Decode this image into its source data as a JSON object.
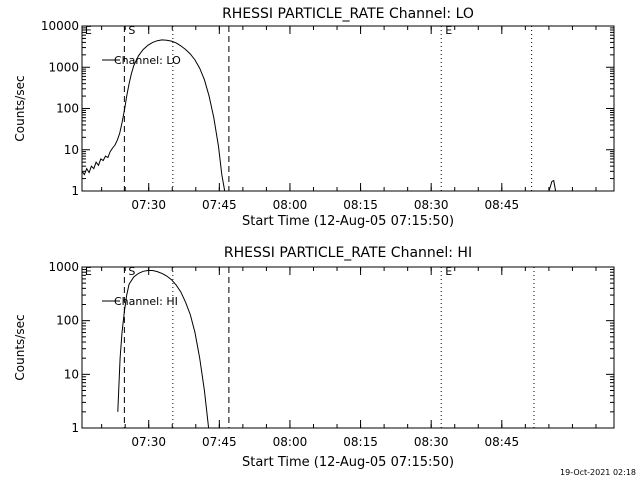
{
  "footer": {
    "timestamp": "19-Oct-2021 02:18"
  },
  "chart_data": [
    {
      "type": "line",
      "title": "RHESSI PARTICLE_RATE Channel: LO",
      "xlabel": "Start Time (12-Aug-05 07:15:50)",
      "ylabel": "Counts/sec",
      "yscale": "log",
      "xlim_minutes": [
        0,
        113
      ],
      "ylim": [
        1,
        10000
      ],
      "grid": false,
      "legend_position": "top-left",
      "x_ticks": [
        {
          "minute": 14.17,
          "label": "07:30"
        },
        {
          "minute": 29.17,
          "label": "07:45"
        },
        {
          "minute": 44.17,
          "label": "08:00"
        },
        {
          "minute": 59.17,
          "label": "08:15"
        },
        {
          "minute": 74.17,
          "label": "08:30"
        },
        {
          "minute": 89.17,
          "label": "08:45"
        }
      ],
      "y_ticks": [
        {
          "value": 1,
          "label": "1"
        },
        {
          "value": 10,
          "label": "10"
        },
        {
          "value": 100,
          "label": "100"
        },
        {
          "value": 1000,
          "label": "1000"
        },
        {
          "value": 10000,
          "label": "10000"
        }
      ],
      "markers": [
        {
          "label": "E",
          "minute": 0.6,
          "style": "none"
        },
        {
          "label": "S",
          "minute": 9.0,
          "style": "dashed"
        },
        {
          "label": "",
          "minute": 19.3,
          "style": "dotted"
        },
        {
          "label": "",
          "minute": 31.2,
          "style": "dashed"
        },
        {
          "label": "E",
          "minute": 76.3,
          "style": "dotted"
        },
        {
          "label": "",
          "minute": 95.5,
          "style": "dotted"
        }
      ],
      "series": [
        {
          "name": "Channel: LO",
          "segments": [
            [
              [
                0,
                3
              ],
              [
                0.5,
                2.5
              ],
              [
                1,
                3.5
              ],
              [
                1.5,
                2.8
              ],
              [
                2,
                4
              ],
              [
                2.5,
                3.5
              ],
              [
                3,
                5
              ],
              [
                3.5,
                4.2
              ],
              [
                4,
                6
              ],
              [
                4.5,
                5.5
              ],
              [
                5,
                7
              ],
              [
                5.5,
                6.5
              ],
              [
                6,
                9
              ],
              [
                6.5,
                11
              ],
              [
                7,
                13
              ],
              [
                7.5,
                17
              ],
              [
                8,
                25
              ],
              [
                8.5,
                45
              ],
              [
                9,
                90
              ],
              [
                9.5,
                200
              ],
              [
                10,
                400
              ],
              [
                10.5,
                700
              ],
              [
                11,
                1100
              ],
              [
                12,
                1900
              ],
              [
                13,
                2700
              ],
              [
                14,
                3400
              ],
              [
                15,
                4000
              ],
              [
                16,
                4400
              ],
              [
                17,
                4600
              ],
              [
                18,
                4500
              ],
              [
                19,
                4300
              ],
              [
                20,
                3900
              ],
              [
                21,
                3300
              ],
              [
                22,
                2700
              ],
              [
                23,
                2100
              ],
              [
                24,
                1500
              ],
              [
                25,
                950
              ],
              [
                26,
                500
              ],
              [
                27,
                200
              ],
              [
                28,
                60
              ],
              [
                29,
                12
              ],
              [
                29.7,
                2.5
              ],
              [
                30.3,
                1
              ]
            ],
            [
              [
                99.2,
                1
              ],
              [
                99.8,
                1.7
              ],
              [
                100.2,
                1.8
              ],
              [
                100.6,
                1
              ]
            ]
          ]
        }
      ]
    },
    {
      "type": "line",
      "title": "RHESSI PARTICLE_RATE Channel: HI",
      "xlabel": "Start Time (12-Aug-05 07:15:50)",
      "ylabel": "Counts/sec",
      "yscale": "log",
      "xlim_minutes": [
        0,
        113
      ],
      "ylim": [
        1,
        1000
      ],
      "grid": false,
      "legend_position": "top-left",
      "x_ticks": [
        {
          "minute": 14.17,
          "label": "07:30"
        },
        {
          "minute": 29.17,
          "label": "07:45"
        },
        {
          "minute": 44.17,
          "label": "08:00"
        },
        {
          "minute": 59.17,
          "label": "08:15"
        },
        {
          "minute": 74.17,
          "label": "08:30"
        },
        {
          "minute": 89.17,
          "label": "08:45"
        }
      ],
      "y_ticks": [
        {
          "value": 1,
          "label": "1"
        },
        {
          "value": 10,
          "label": "10"
        },
        {
          "value": 100,
          "label": "100"
        },
        {
          "value": 1000,
          "label": "1000"
        }
      ],
      "markers": [
        {
          "label": "E",
          "minute": 0.6,
          "style": "none"
        },
        {
          "label": "S",
          "minute": 9.0,
          "style": "dashed"
        },
        {
          "label": "",
          "minute": 19.3,
          "style": "dotted"
        },
        {
          "label": "",
          "minute": 31.2,
          "style": "dashed"
        },
        {
          "label": "E",
          "minute": 76.3,
          "style": "dotted"
        },
        {
          "label": "",
          "minute": 96.0,
          "style": "dotted"
        }
      ],
      "series": [
        {
          "name": "Channel: HI",
          "segments": [
            [
              [
                7.6,
                2
              ],
              [
                7.8,
                5
              ],
              [
                8.1,
                20
              ],
              [
                8.5,
                60
              ],
              [
                9,
                150
              ],
              [
                9.5,
                300
              ],
              [
                10,
                480
              ],
              [
                11,
                650
              ],
              [
                12,
                760
              ],
              [
                13,
                830
              ],
              [
                14,
                860
              ],
              [
                15,
                860
              ],
              [
                16,
                820
              ],
              [
                17,
                760
              ],
              [
                18,
                680
              ],
              [
                19,
                580
              ],
              [
                20,
                460
              ],
              [
                21,
                340
              ],
              [
                22,
                220
              ],
              [
                23,
                130
              ],
              [
                24,
                60
              ],
              [
                25,
                20
              ],
              [
                26,
                5
              ],
              [
                26.5,
                2
              ],
              [
                26.9,
                1
              ]
            ]
          ]
        }
      ]
    }
  ]
}
